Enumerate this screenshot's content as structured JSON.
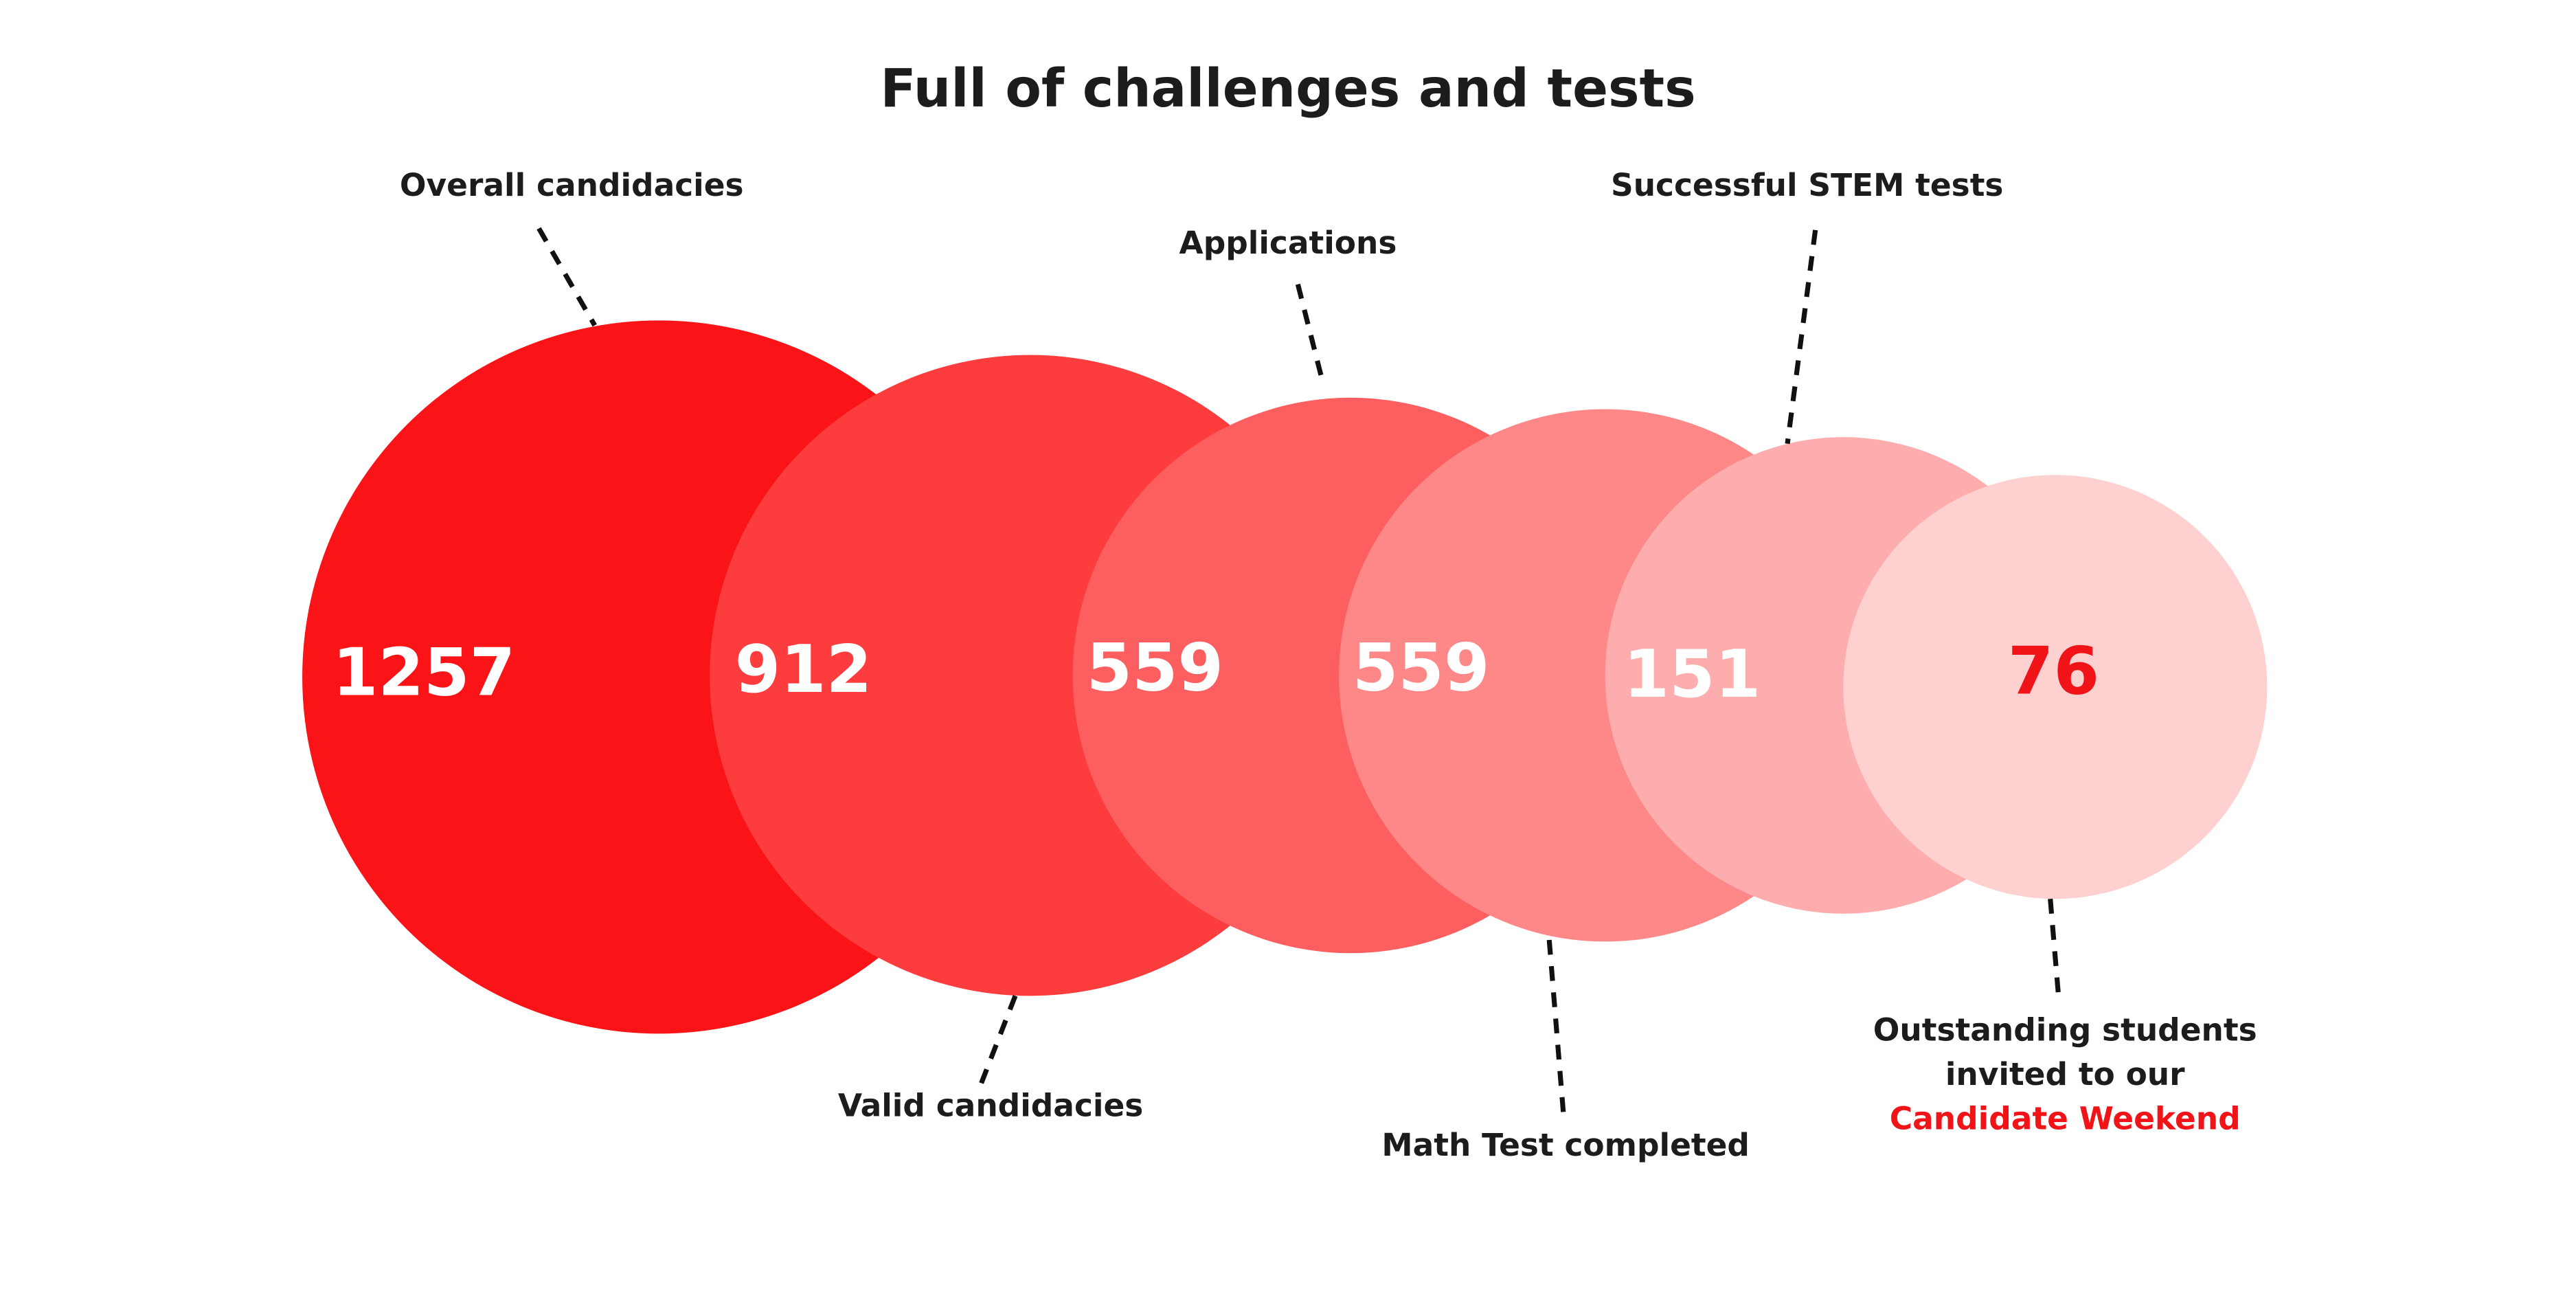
{
  "title": "Full of challenges and tests",
  "stages": [
    {
      "label": "Overall candidacies",
      "value": "1257"
    },
    {
      "label": "Valid candidacies",
      "value": "912"
    },
    {
      "label": "Applications",
      "value": "559"
    },
    {
      "label": "Math Test completed",
      "value": "559"
    },
    {
      "label": "Successful STEM tests",
      "value": "151"
    },
    {
      "label_lines": [
        "Outstanding students",
        "invited to our",
        "Candidate Weekend"
      ],
      "value": "76"
    }
  ]
}
